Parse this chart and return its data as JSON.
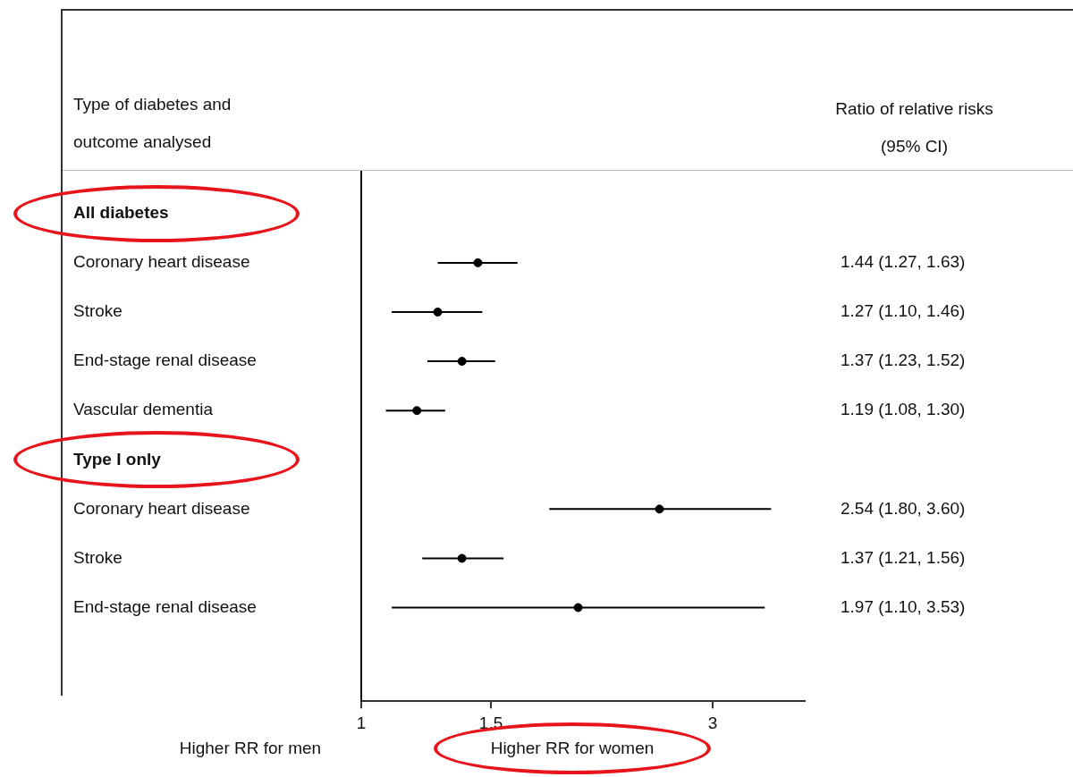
{
  "chart_data": {
    "type": "scatter",
    "orientation": "horizontal",
    "ylabel": "Type of diabetes and outcome analysed",
    "annotations": [
      "Ratio of relative risks (95% CI)",
      "Higher RR for men",
      "Higher RR for women"
    ],
    "categories": [
      "All diabetes",
      "Coronary heart disease",
      "Stroke",
      "End-stage renal disease",
      "Vascular dementia",
      "Type I only",
      "Coronary heart disease",
      "Stroke",
      "End-stage renal disease"
    ],
    "values": [
      null,
      1.44,
      1.27,
      1.37,
      1.19,
      null,
      2.54,
      1.37,
      1.97
    ],
    "errors": [
      null,
      [
        1.27,
        1.63
      ],
      [
        1.1,
        1.46
      ],
      [
        1.23,
        1.52
      ],
      [
        1.08,
        1.3
      ],
      null,
      [
        1.8,
        3.6
      ],
      [
        1.21,
        1.56
      ],
      [
        1.1,
        3.53
      ]
    ],
    "value_labels": [
      null,
      "1.44 (1.27, 1.63)",
      "1.27 (1.10, 1.46)",
      "1.37 (1.23, 1.52)",
      "1.19 (1.08, 1.30)",
      null,
      "2.54 (1.80, 3.60)",
      "1.37 (1.21, 1.56)",
      "1.97 (1.10, 3.53)"
    ],
    "color": "#000000",
    "marker": "circle",
    "xlim": [
      1,
      4
    ],
    "xticks": [
      1,
      1.5,
      3
    ],
    "log": "x"
  }
}
